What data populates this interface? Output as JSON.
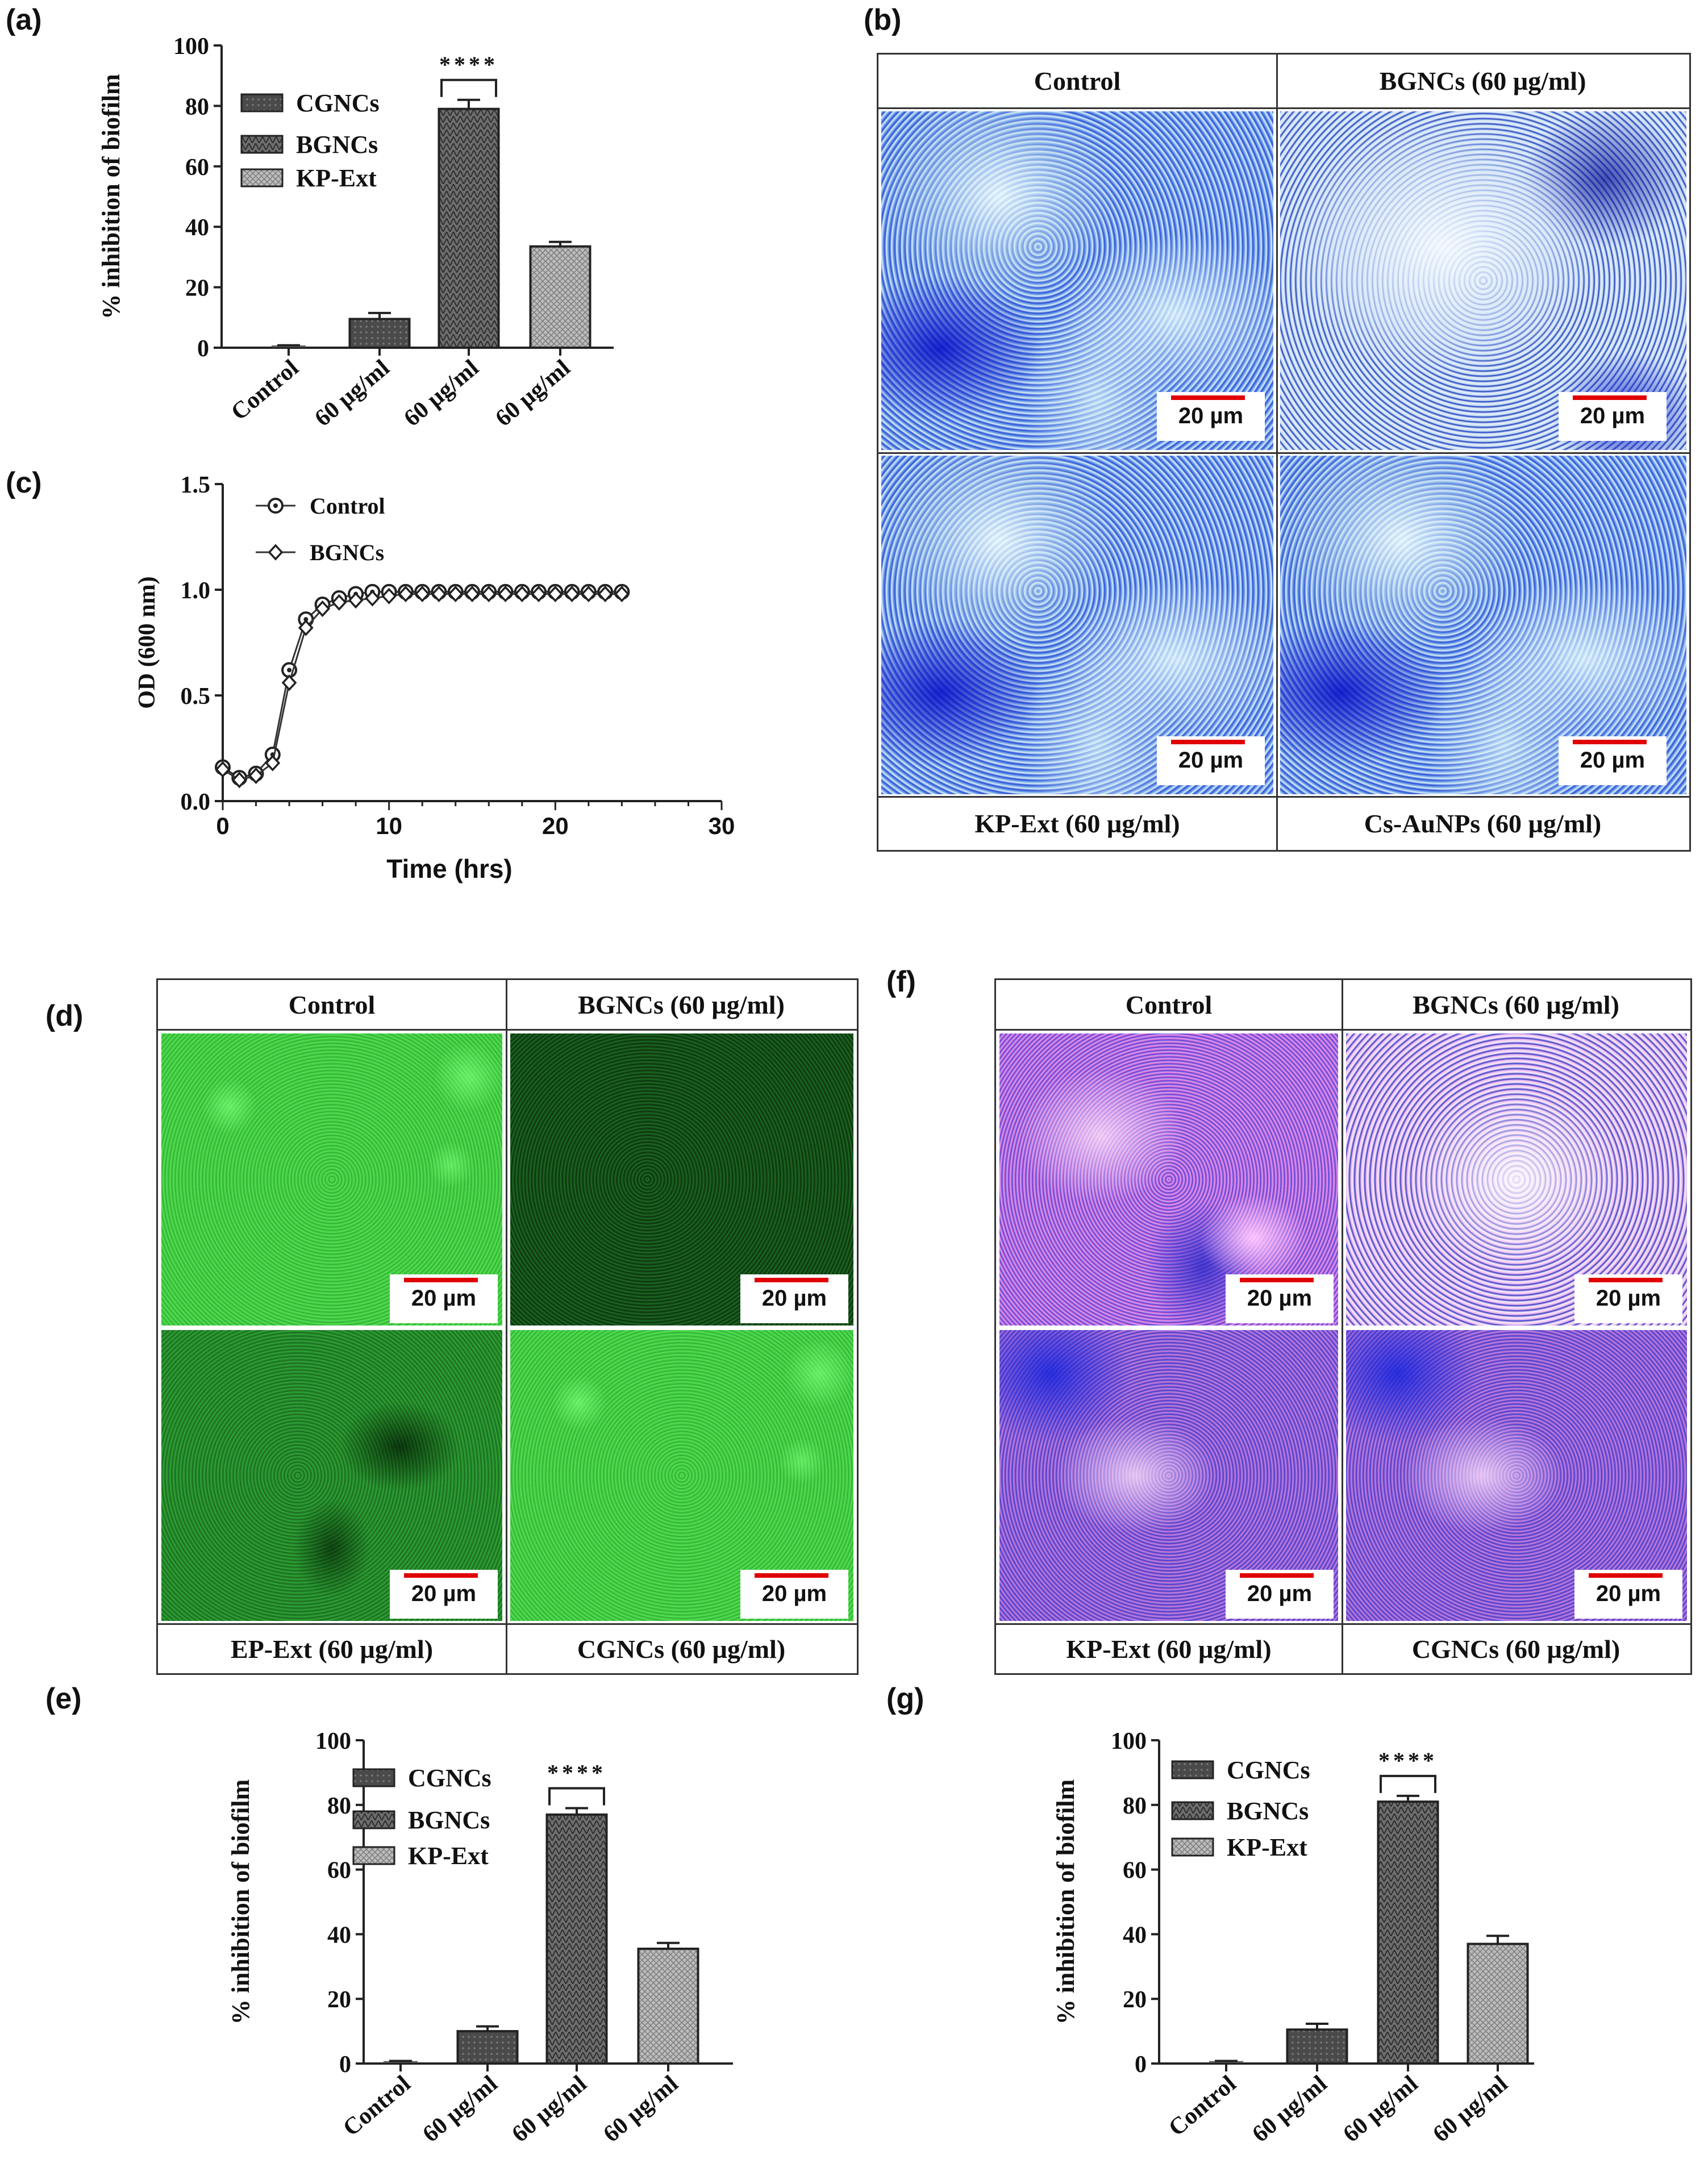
{
  "panels": {
    "a": "(a)",
    "b": "(b)",
    "c": "(c)",
    "d": "(d)",
    "e": "(e)",
    "f": "(f)",
    "g": "(g)"
  },
  "micrograph_grids": {
    "b": {
      "top_labels": [
        "Control",
        "BGNCs (60 µg/ml)"
      ],
      "bottom_labels": [
        "KP-Ext (60 µg/ml)",
        "Cs-AuNPs (60 µg/ml)"
      ],
      "scale": [
        "20 µm",
        "20 µm",
        "20 µm",
        "20 µm"
      ]
    },
    "d": {
      "top_labels": [
        "Control",
        "BGNCs (60 µg/ml)"
      ],
      "bottom_labels": [
        "EP-Ext (60 µg/ml)",
        "CGNCs (60 µg/ml)"
      ],
      "scale": [
        "20 µm",
        "20 µm",
        "20 µm",
        "20 µm"
      ]
    },
    "f": {
      "top_labels": [
        "Control",
        "BGNCs (60 µg/ml)"
      ],
      "bottom_labels": [
        "KP-Ext (60 µg/ml)",
        "CGNCs (60 µg/ml)"
      ],
      "scale": [
        "20 µm",
        "20 µm",
        "20 µm",
        "20 µm"
      ]
    }
  },
  "chart_data": [
    {
      "panel": "a",
      "type": "bar",
      "categories": [
        "Control",
        "60 µg/ml",
        "60 µg/ml",
        "60 µg/ml"
      ],
      "values": [
        0.5,
        9.5,
        79,
        33.5
      ],
      "errors": [
        0.3,
        2,
        3,
        1.5
      ],
      "legend": [
        "CGNCs",
        "BGNCs",
        "KP-Ext"
      ],
      "ylabel": "% inhibition of biofilm",
      "ylim": [
        0,
        100
      ],
      "yticks": [
        0,
        20,
        40,
        60,
        80,
        100
      ],
      "significance": "****",
      "significance_bar_index": 2
    },
    {
      "panel": "c",
      "type": "line",
      "xlabel": "Time (hrs)",
      "ylabel": "OD (600 nm)",
      "xlim": [
        0,
        30
      ],
      "ylim": [
        0,
        1.5
      ],
      "xticks": [
        0,
        10,
        20,
        30
      ],
      "yticks": [
        0.0,
        0.5,
        1.0,
        1.5
      ],
      "series": [
        {
          "name": "Control",
          "x": [
            0,
            1,
            2,
            3,
            4,
            5,
            6,
            7,
            8,
            9,
            10,
            11,
            12,
            13,
            14,
            15,
            16,
            17,
            18,
            19,
            20,
            21,
            22,
            23,
            24
          ],
          "y": [
            0.16,
            0.11,
            0.13,
            0.22,
            0.62,
            0.86,
            0.93,
            0.96,
            0.98,
            0.99,
            0.99,
            0.99,
            0.99,
            0.99,
            0.99,
            0.99,
            0.99,
            0.99,
            0.99,
            0.99,
            0.99,
            0.99,
            0.99,
            0.99,
            0.99
          ]
        },
        {
          "name": "BGNCs",
          "x": [
            0,
            1,
            2,
            3,
            4,
            5,
            6,
            7,
            8,
            9,
            10,
            11,
            12,
            13,
            14,
            15,
            16,
            17,
            18,
            19,
            20,
            21,
            22,
            23,
            24
          ],
          "y": [
            0.15,
            0.1,
            0.12,
            0.18,
            0.56,
            0.82,
            0.91,
            0.94,
            0.95,
            0.96,
            0.97,
            0.98,
            0.98,
            0.98,
            0.98,
            0.98,
            0.98,
            0.98,
            0.98,
            0.98,
            0.98,
            0.98,
            0.98,
            0.98,
            0.98
          ]
        }
      ]
    },
    {
      "panel": "e",
      "type": "bar",
      "categories": [
        "Control",
        "60 µg/ml",
        "60 µg/ml",
        "60 µg/ml"
      ],
      "values": [
        0.5,
        10,
        77,
        35.5
      ],
      "errors": [
        0.3,
        1.5,
        2,
        1.8
      ],
      "legend": [
        "CGNCs",
        "BGNCs",
        "KP-Ext"
      ],
      "ylabel": "% inhibition of biofilm",
      "ylim": [
        0,
        100
      ],
      "yticks": [
        0,
        20,
        40,
        60,
        80,
        100
      ],
      "significance": "****",
      "significance_bar_index": 2
    },
    {
      "panel": "g",
      "type": "bar",
      "categories": [
        "Control",
        "60 µg/ml",
        "60 µg/ml",
        "60 µg/ml"
      ],
      "values": [
        0.5,
        10.5,
        81,
        37
      ],
      "errors": [
        0.3,
        1.8,
        1.8,
        2.5
      ],
      "legend": [
        "CGNCs",
        "BGNCs",
        "KP-Ext"
      ],
      "ylabel": "% inhibition of biofilm",
      "ylim": [
        0,
        100
      ],
      "yticks": [
        0,
        20,
        40,
        60,
        80,
        100
      ],
      "significance": "****",
      "significance_bar_index": 2
    }
  ]
}
